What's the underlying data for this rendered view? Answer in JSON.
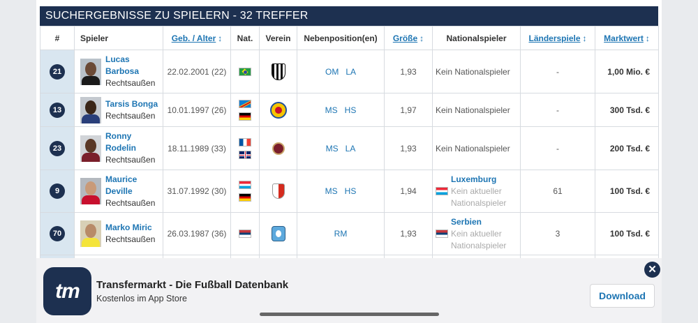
{
  "results_title": "SUCHERGEBNISSE ZU SPIELERN - 32 TREFFER",
  "columns": {
    "num": "#",
    "player": "Spieler",
    "birth": "Geb. / Alter",
    "nat": "Nat.",
    "club": "Verein",
    "secondary": "Nebenposition(en)",
    "height": "Größe",
    "national_player": "Nationalspieler",
    "caps": "Länderspiele",
    "market_value": "Marktwert",
    "sort_symbol": "↕"
  },
  "rows": [
    {
      "number": "21",
      "name": "Lucas Barbosa",
      "position": "Rechtsaußen",
      "birth": "22.02.2001 (22)",
      "flags": [
        "Brazil"
      ],
      "club": "Santos",
      "secondary": [
        "OM",
        "LA"
      ],
      "height": "1,93",
      "national": {
        "text": "Kein Nationalspieler"
      },
      "caps": "-",
      "value": "1,00 Mio. €"
    },
    {
      "number": "13",
      "name": "Tarsis Bonga",
      "position": "Rechtsaußen",
      "birth": "10.01.1997 (26)",
      "flags": [
        "DR Congo",
        "Germany"
      ],
      "club": "Eintracht Braunschweig",
      "secondary": [
        "MS",
        "HS"
      ],
      "height": "1,97",
      "national": {
        "text": "Kein Nationalspieler"
      },
      "caps": "-",
      "value": "300 Tsd. €"
    },
    {
      "number": "23",
      "name": "Ronny Rodelin",
      "position": "Rechtsaußen",
      "birth": "18.11.1989 (33)",
      "flags": [
        "France",
        "UK"
      ],
      "club": "Servette",
      "secondary": [
        "MS",
        "LA"
      ],
      "height": "1,93",
      "national": {
        "text": "Kein Nationalspieler"
      },
      "caps": "-",
      "value": "200 Tsd. €"
    },
    {
      "number": "9",
      "name": "Maurice Deville",
      "position": "Rechtsaußen",
      "birth": "31.07.1992 (30)",
      "flags": [
        "Luxembourg",
        "Germany"
      ],
      "club": "FC Sion",
      "secondary": [
        "MS",
        "HS"
      ],
      "height": "1,94",
      "national": {
        "country": "Luxemburg",
        "note1": "Kein aktueller",
        "note2": "Nationalspieler",
        "flag": "Luxembourg"
      },
      "caps": "61",
      "value": "100 Tsd. €"
    },
    {
      "number": "70",
      "name": "Marko Miric",
      "position": "Rechtsaußen",
      "birth": "26.03.1987 (36)",
      "flags": [
        "Serbia"
      ],
      "club": "Hobro",
      "secondary": [
        "RM"
      ],
      "height": "1,93",
      "national": {
        "country": "Serbien",
        "note1": "Kein aktueller",
        "note2": "Nationalspieler",
        "flag": "Serbia"
      },
      "caps": "3",
      "value": "100 Tsd. €"
    }
  ],
  "app_banner": {
    "logo_text": "tm",
    "title": "Transfermarkt - Die Fußball Datenbank",
    "subtitle": "Kostenlos im App Store",
    "download_label": "Download",
    "close_symbol": "✕"
  },
  "colors": {
    "navy": "#1d3050",
    "link": "#1d75b3",
    "num_bg": "#d9e6f0"
  }
}
